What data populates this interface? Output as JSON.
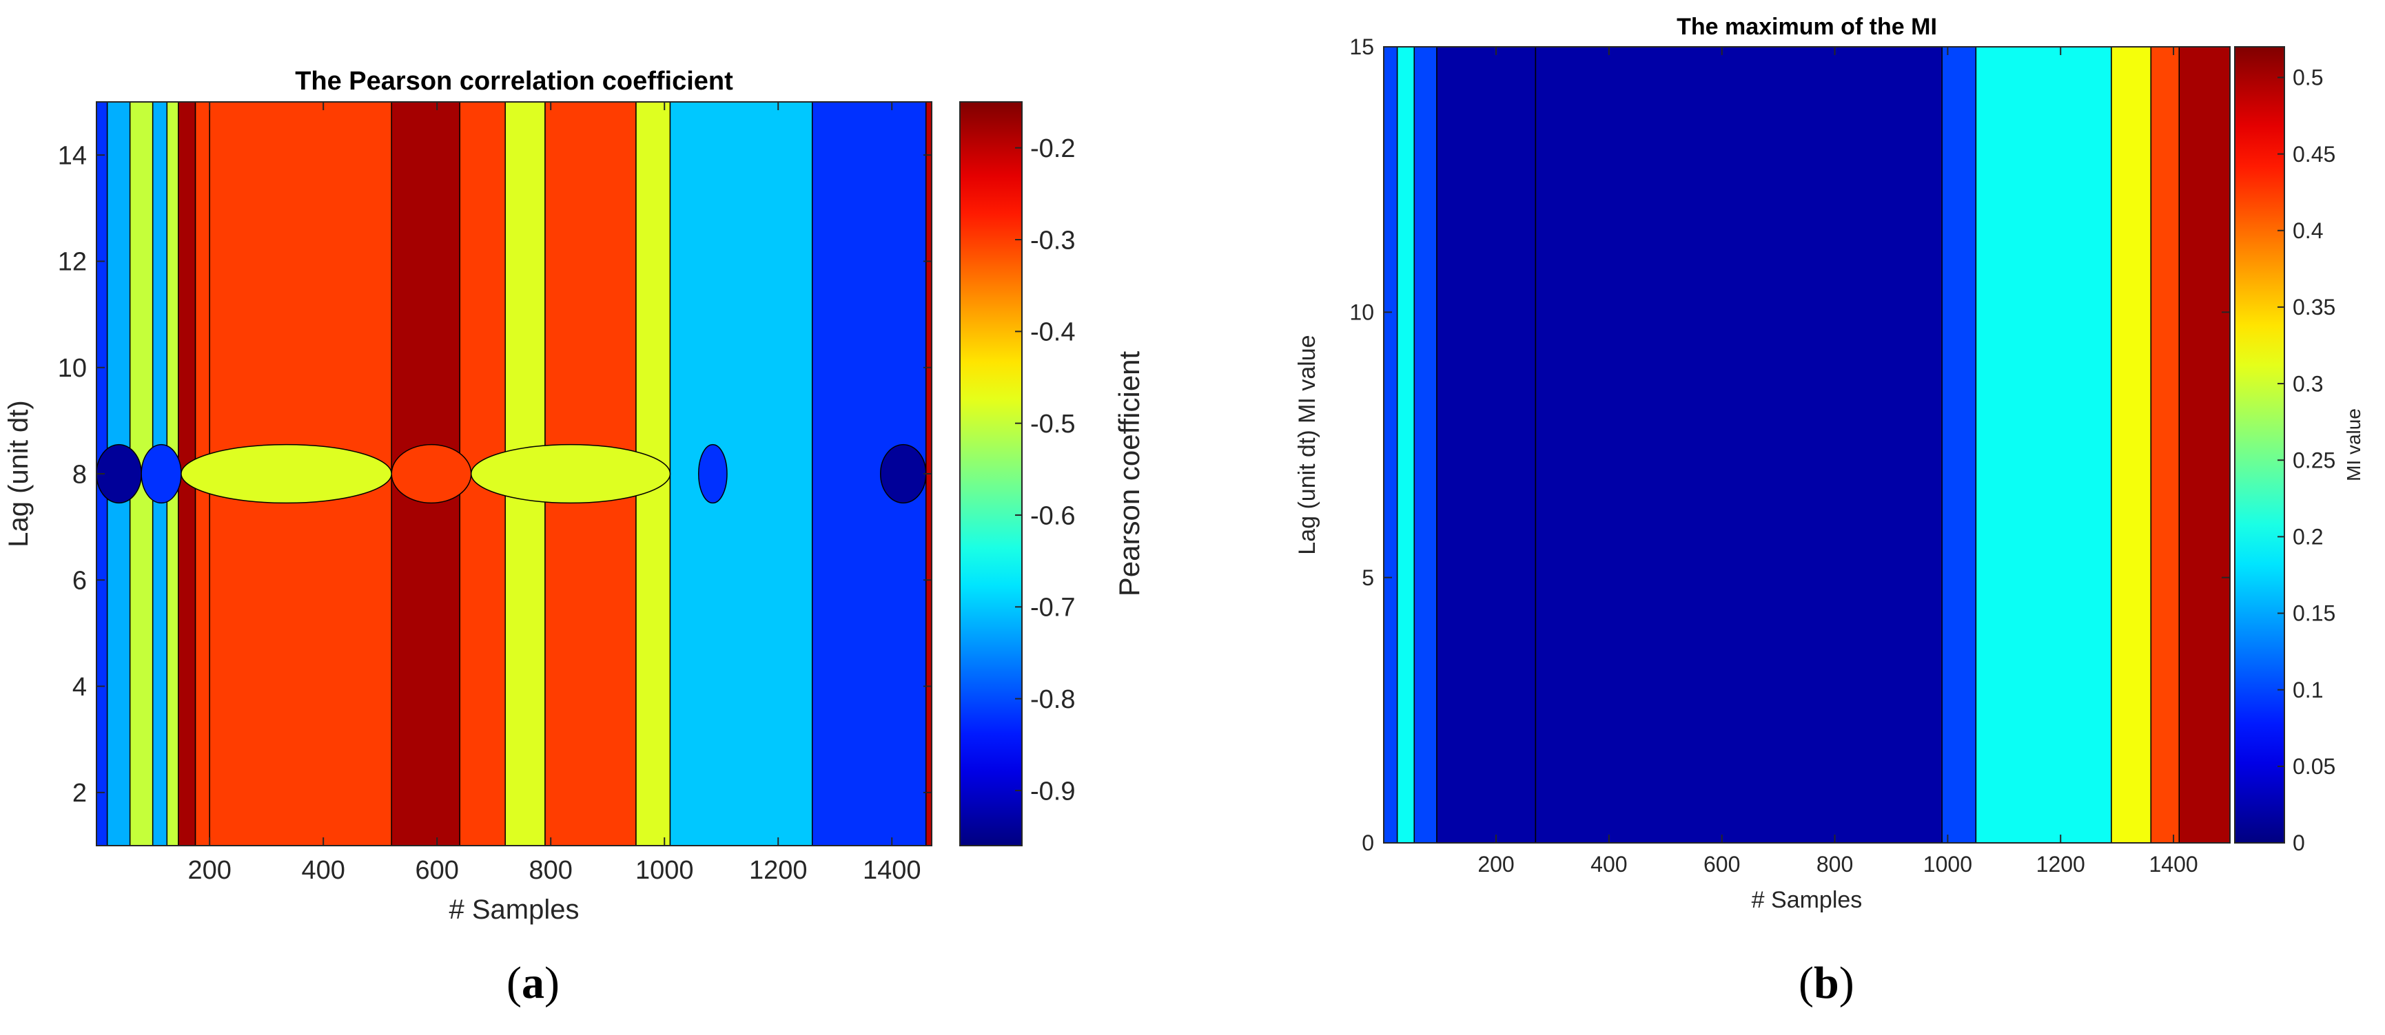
{
  "chart_data": [
    {
      "panel": "(a)",
      "type": "heatmap",
      "title": "The Pearson correlation coefficient",
      "xlabel": "# Samples",
      "ylabel": "Lag (unit dt)",
      "colorbar_label": "Pearson coefficient",
      "xlim": [
        1,
        1470
      ],
      "ylim": [
        1,
        15
      ],
      "xticks": [
        200,
        400,
        600,
        800,
        1000,
        1200,
        1400
      ],
      "yticks": [
        2,
        4,
        6,
        8,
        10,
        12,
        14
      ],
      "colorbar_range": [
        -0.96,
        -0.15
      ],
      "colorbar_ticks": [
        -0.2,
        -0.3,
        -0.4,
        -0.5,
        -0.6,
        -0.7,
        -0.8,
        -0.9
      ],
      "bands": [
        {
          "x": [
            1,
            20
          ],
          "value": -0.82
        },
        {
          "x": [
            20,
            60
          ],
          "value": -0.72
        },
        {
          "x": [
            60,
            100
          ],
          "value": -0.5
        },
        {
          "x": [
            100,
            125
          ],
          "value": -0.72
        },
        {
          "x": [
            125,
            145
          ],
          "value": -0.5
        },
        {
          "x": [
            145,
            175
          ],
          "value": -0.18
        },
        {
          "x": [
            175,
            200
          ],
          "value": -0.3
        },
        {
          "x": [
            200,
            520
          ],
          "value": -0.3
        },
        {
          "x": [
            520,
            640
          ],
          "value": -0.18
        },
        {
          "x": [
            640,
            720
          ],
          "value": -0.3
        },
        {
          "x": [
            720,
            790
          ],
          "value": -0.48
        },
        {
          "x": [
            790,
            950
          ],
          "value": -0.3
        },
        {
          "x": [
            950,
            1010
          ],
          "value": -0.48
        },
        {
          "x": [
            1010,
            1260
          ],
          "value": -0.7
        },
        {
          "x": [
            1260,
            1460
          ],
          "value": -0.82
        },
        {
          "x": [
            1460,
            1470
          ],
          "value": -0.2
        }
      ],
      "lag8_row": [
        {
          "x": [
            1,
            80
          ],
          "value": -0.94
        },
        {
          "x": [
            80,
            150
          ],
          "value": -0.82
        },
        {
          "x": [
            150,
            520
          ],
          "value": -0.48
        },
        {
          "x": [
            520,
            660
          ],
          "value": -0.3
        },
        {
          "x": [
            660,
            1010
          ],
          "value": -0.48
        },
        {
          "x": [
            1060,
            1110
          ],
          "value": -0.82
        },
        {
          "x": [
            1380,
            1460
          ],
          "value": -0.94
        }
      ]
    },
    {
      "panel": "(b)",
      "type": "heatmap",
      "title": "The  maximum of the MI",
      "xlabel": "# Samples",
      "ylabel": "Lag (unit dt)     MI value",
      "colorbar_label": "MI value",
      "xlim": [
        1,
        1500
      ],
      "ylim": [
        0,
        15
      ],
      "xticks": [
        200,
        400,
        600,
        800,
        1000,
        1200,
        1400
      ],
      "yticks": [
        0,
        5,
        10,
        15
      ],
      "colorbar_range": [
        0,
        0.52
      ],
      "colorbar_ticks": [
        0,
        0.05,
        0.1,
        0.15,
        0.2,
        0.25,
        0.3,
        0.35,
        0.4,
        0.45,
        0.5
      ],
      "bands": [
        {
          "x": [
            1,
            25
          ],
          "value": 0.1
        },
        {
          "x": [
            25,
            55
          ],
          "value": 0.2
        },
        {
          "x": [
            55,
            95
          ],
          "value": 0.1
        },
        {
          "x": [
            95,
            270
          ],
          "value": 0.02
        },
        {
          "x": [
            270,
            990
          ],
          "value": 0.02
        },
        {
          "x": [
            990,
            1050
          ],
          "value": 0.1
        },
        {
          "x": [
            1050,
            1290
          ],
          "value": 0.2
        },
        {
          "x": [
            1290,
            1360
          ],
          "value": 0.32
        },
        {
          "x": [
            1360,
            1410
          ],
          "value": 0.42
        },
        {
          "x": [
            1410,
            1500
          ],
          "value": 0.5
        }
      ]
    }
  ],
  "captions": {
    "a": "a",
    "b": "b"
  }
}
